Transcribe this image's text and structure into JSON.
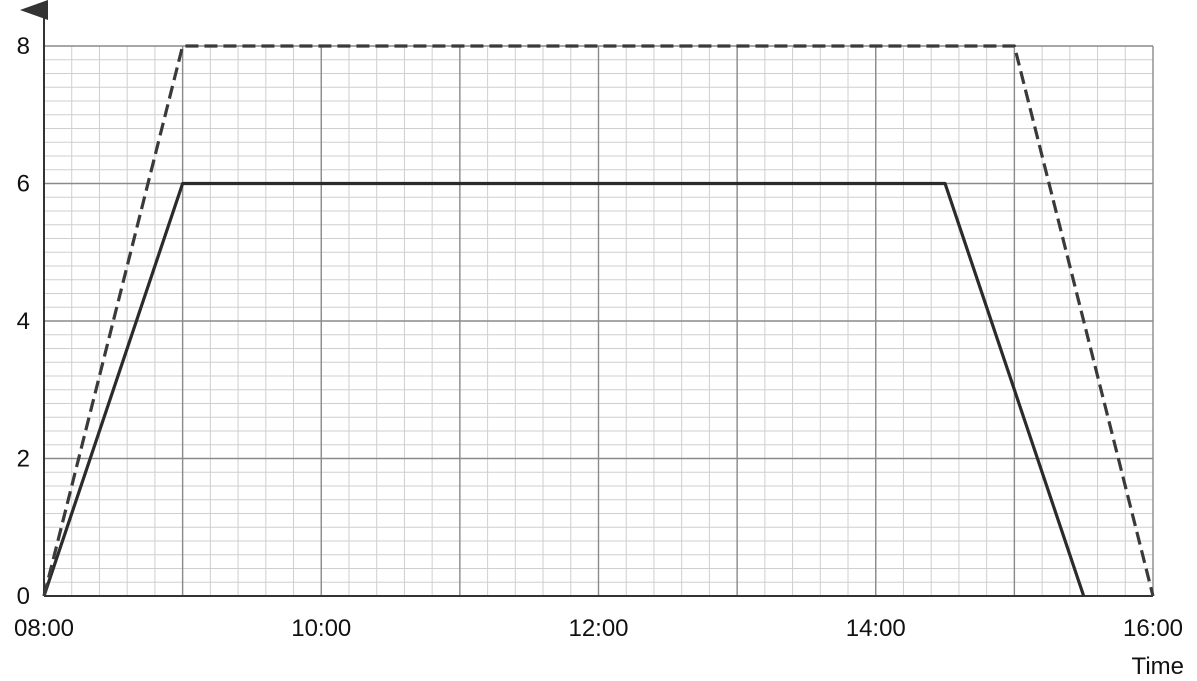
{
  "chart_data": {
    "type": "line",
    "title": "",
    "xlabel": "Time",
    "ylabel": "",
    "xlim": [
      "08:00",
      "16:00"
    ],
    "ylim": [
      0,
      8
    ],
    "x_ticks": [
      "08:00",
      "10:00",
      "12:00",
      "14:00",
      "16:00"
    ],
    "y_ticks": [
      0,
      2,
      4,
      6,
      8
    ],
    "grid": true,
    "grid_style": "fine graph paper (minor every 0.2 h / 0.2 units, major every 1 h / 2 units)",
    "legend": "none",
    "series": [
      {
        "style": "solid",
        "color": "#2b2b2b",
        "points": [
          [
            "08:00",
            0
          ],
          [
            "09:00",
            6
          ],
          [
            "14:30",
            6
          ],
          [
            "15:30",
            0
          ]
        ]
      },
      {
        "style": "dashed",
        "color": "#3a3a3a",
        "points": [
          [
            "08:00",
            0
          ],
          [
            "09:00",
            8
          ],
          [
            "15:00",
            8
          ],
          [
            "16:00",
            0
          ]
        ]
      }
    ]
  }
}
